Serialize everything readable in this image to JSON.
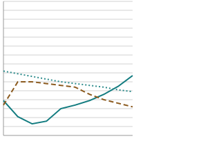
{
  "chart_data": {
    "type": "line",
    "x": [
      0,
      2,
      4,
      6,
      8,
      10,
      12,
      14,
      16,
      18
    ],
    "xlim": [
      0,
      18
    ],
    "ylim": [
      0,
      15
    ],
    "yticks": [
      0,
      1,
      2,
      3,
      4,
      5,
      6,
      7,
      8,
      9,
      10,
      11,
      12,
      13,
      14,
      15
    ],
    "grid": true,
    "series": [
      {
        "color": "#137c80",
        "dash": "solid",
        "values": [
          3.9,
          2.1,
          1.3,
          1.6,
          3.0,
          3.4,
          3.9,
          4.6,
          5.5,
          6.7
        ]
      },
      {
        "color": "#8b5a1e",
        "dash": "dashed",
        "values": [
          3.4,
          6.0,
          6.0,
          5.8,
          5.6,
          5.4,
          4.6,
          4.0,
          3.6,
          3.2
        ]
      },
      {
        "color": "#2a8a8a",
        "dash": "dotted",
        "values": [
          7.2,
          6.9,
          6.6,
          6.3,
          6.0,
          5.8,
          5.6,
          5.4,
          5.1,
          4.9
        ]
      }
    ]
  }
}
